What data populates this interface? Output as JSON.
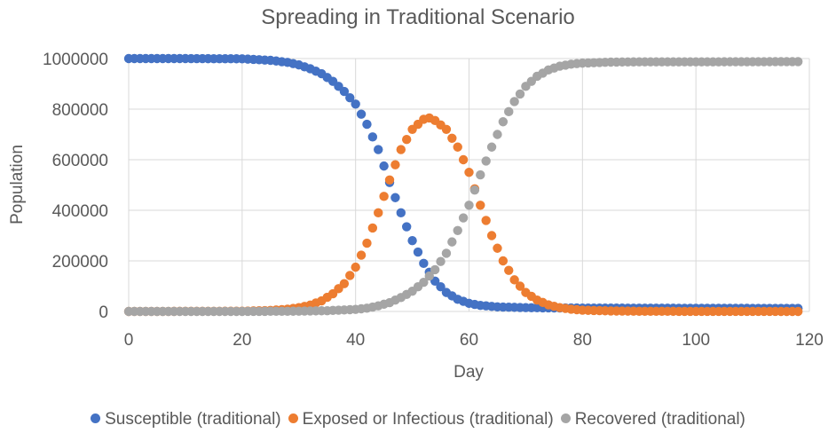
{
  "chart_data": {
    "type": "scatter",
    "title": "Spreading in Traditional Scenario",
    "xlabel": "Day",
    "ylabel": "Population",
    "xlim": [
      0,
      120
    ],
    "ylim": [
      0,
      1000000
    ],
    "x_ticks": [
      "0",
      "20",
      "40",
      "60",
      "80",
      "100",
      "120"
    ],
    "y_ticks": [
      "0",
      "200000",
      "400000",
      "600000",
      "800000",
      "1000000"
    ],
    "grid": true,
    "legend_position": "bottom",
    "colors": {
      "susceptible": "#4472C4",
      "exposed": "#ED7D31",
      "recovered": "#A5A5A5",
      "grid": "#D9D9D9",
      "text": "#595959"
    },
    "series": [
      {
        "name": "Susceptible (traditional)",
        "color": "#4472C4",
        "points": [
          [
            0,
            1000000
          ],
          [
            10,
            1000000
          ],
          [
            20,
            999000
          ],
          [
            25,
            993000
          ],
          [
            28,
            985000
          ],
          [
            30,
            975000
          ],
          [
            32,
            960000
          ],
          [
            34,
            940000
          ],
          [
            36,
            910000
          ],
          [
            38,
            870000
          ],
          [
            40,
            820000
          ],
          [
            42,
            740000
          ],
          [
            44,
            640000
          ],
          [
            46,
            510000
          ],
          [
            48,
            390000
          ],
          [
            50,
            280000
          ],
          [
            52,
            190000
          ],
          [
            54,
            120000
          ],
          [
            56,
            75000
          ],
          [
            58,
            48000
          ],
          [
            60,
            32000
          ],
          [
            62,
            24000
          ],
          [
            65,
            18000
          ],
          [
            70,
            15000
          ],
          [
            75,
            14000
          ],
          [
            80,
            13500
          ],
          [
            90,
            13000
          ],
          [
            100,
            12500
          ],
          [
            118,
            12000
          ]
        ]
      },
      {
        "name": "Exposed or Infectious (traditional)",
        "color": "#ED7D31",
        "points": [
          [
            0,
            0
          ],
          [
            20,
            1000
          ],
          [
            25,
            4000
          ],
          [
            28,
            9000
          ],
          [
            30,
            15000
          ],
          [
            32,
            25000
          ],
          [
            34,
            42000
          ],
          [
            36,
            70000
          ],
          [
            38,
            110000
          ],
          [
            40,
            175000
          ],
          [
            42,
            270000
          ],
          [
            44,
            390000
          ],
          [
            46,
            520000
          ],
          [
            48,
            640000
          ],
          [
            50,
            720000
          ],
          [
            52,
            760000
          ],
          [
            53,
            765000
          ],
          [
            54,
            755000
          ],
          [
            56,
            720000
          ],
          [
            58,
            650000
          ],
          [
            60,
            550000
          ],
          [
            62,
            420000
          ],
          [
            64,
            300000
          ],
          [
            66,
            200000
          ],
          [
            68,
            125000
          ],
          [
            70,
            75000
          ],
          [
            72,
            45000
          ],
          [
            74,
            26000
          ],
          [
            76,
            15000
          ],
          [
            78,
            9000
          ],
          [
            80,
            5000
          ],
          [
            85,
            2000
          ],
          [
            90,
            800
          ],
          [
            100,
            200
          ],
          [
            118,
            0
          ]
        ]
      },
      {
        "name": "Recovered (traditional)",
        "color": "#A5A5A5",
        "points": [
          [
            0,
            0
          ],
          [
            20,
            0
          ],
          [
            30,
            1000
          ],
          [
            35,
            3000
          ],
          [
            40,
            8000
          ],
          [
            42,
            13000
          ],
          [
            44,
            22000
          ],
          [
            46,
            35000
          ],
          [
            48,
            55000
          ],
          [
            50,
            80000
          ],
          [
            52,
            115000
          ],
          [
            54,
            165000
          ],
          [
            56,
            230000
          ],
          [
            58,
            320000
          ],
          [
            60,
            420000
          ],
          [
            62,
            540000
          ],
          [
            64,
            650000
          ],
          [
            66,
            750000
          ],
          [
            68,
            830000
          ],
          [
            70,
            890000
          ],
          [
            72,
            930000
          ],
          [
            74,
            955000
          ],
          [
            76,
            970000
          ],
          [
            78,
            978000
          ],
          [
            80,
            982000
          ],
          [
            85,
            986000
          ],
          [
            90,
            987000
          ],
          [
            100,
            987000
          ],
          [
            118,
            988000
          ]
        ]
      }
    ]
  }
}
